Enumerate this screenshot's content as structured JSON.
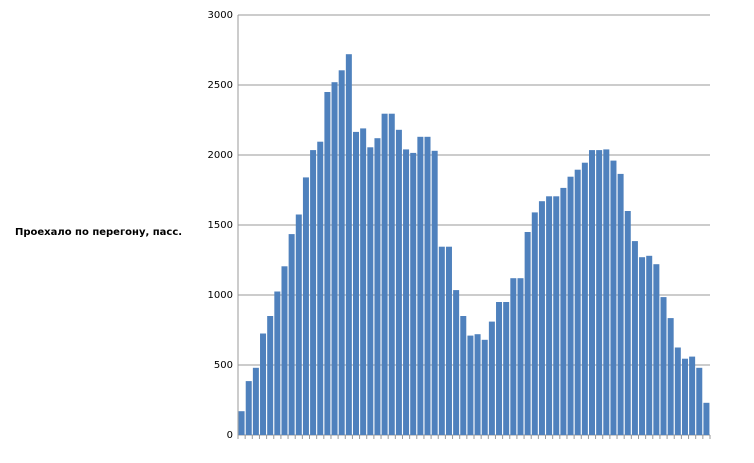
{
  "chart_data": {
    "type": "bar",
    "y_label": "Проехало по перегону, пасс.",
    "categories": [
      null,
      null,
      null,
      null,
      null,
      null,
      null,
      null,
      null,
      null,
      null,
      null,
      null,
      null,
      null,
      null,
      null,
      null,
      null,
      null,
      null,
      null,
      null,
      null,
      null,
      null,
      null,
      null,
      null,
      null,
      null,
      null,
      null,
      null,
      null,
      null,
      null,
      null,
      null,
      null,
      null,
      null,
      null,
      null,
      null,
      null,
      null,
      null,
      null,
      null,
      null,
      null,
      null,
      null,
      null,
      null,
      null,
      null,
      null,
      null,
      null,
      null,
      null,
      null,
      null,
      null
    ],
    "values": [
      170,
      385,
      480,
      725,
      850,
      1025,
      1205,
      1435,
      1575,
      1840,
      2035,
      2095,
      2450,
      2520,
      2605,
      2720,
      2165,
      2190,
      2055,
      2120,
      2295,
      2295,
      2180,
      2040,
      2015,
      2130,
      2130,
      2030,
      1345,
      1345,
      1035,
      850,
      710,
      720,
      680,
      810,
      950,
      950,
      1120,
      1120,
      1450,
      1590,
      1670,
      1705,
      1705,
      1765,
      1845,
      1895,
      1945,
      2035,
      2035,
      2040,
      1960,
      1865,
      1600,
      1385,
      1270,
      1280,
      1220,
      985,
      835,
      625,
      545,
      560,
      480,
      230
    ],
    "color": "#4f81bd",
    "ylim": [
      0,
      3000
    ],
    "yticks": [
      0,
      500,
      1000,
      1500,
      2000,
      2500,
      3000
    ],
    "grid": true
  }
}
